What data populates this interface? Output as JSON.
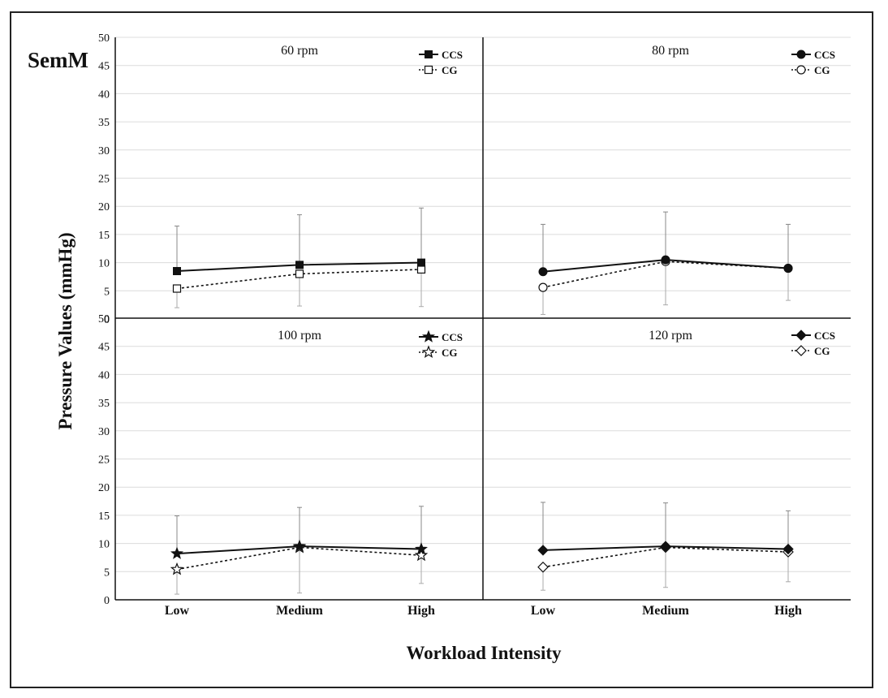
{
  "figure": {
    "muscle_label": "SemM",
    "ylabel": "Pressure Values (mmHg)",
    "xlabel": "Workload Intensity"
  },
  "chart_data": [
    {
      "type": "line",
      "title": "60 rpm",
      "categories": [
        "Low",
        "Medium",
        "High"
      ],
      "ylim": [
        0,
        50
      ],
      "yticks": [
        0,
        5,
        10,
        15,
        20,
        25,
        30,
        35,
        40,
        45,
        50
      ],
      "grid": true,
      "legend_position": "top-right",
      "marker": "square",
      "series": [
        {
          "name": "CCS",
          "values": [
            8.5,
            9.6,
            10.0
          ],
          "error_upper": [
            16.5,
            18.5,
            19.7
          ],
          "line": "solid",
          "fill": "filled"
        },
        {
          "name": "CG",
          "values": [
            5.4,
            8.0,
            8.8
          ],
          "error_lower": [
            2.0,
            2.3,
            2.2
          ],
          "line": "dotted",
          "fill": "open"
        }
      ]
    },
    {
      "type": "line",
      "title": "80 rpm",
      "categories": [
        "Low",
        "Medium",
        "High"
      ],
      "ylim": [
        0,
        50
      ],
      "grid": true,
      "legend_position": "top-right",
      "marker": "circle",
      "series": [
        {
          "name": "CCS",
          "values": [
            8.4,
            10.5,
            9.0
          ],
          "error_upper": [
            16.8,
            19.0,
            16.8
          ],
          "line": "solid",
          "fill": "filled"
        },
        {
          "name": "CG",
          "values": [
            5.6,
            10.2,
            9.0
          ],
          "error_lower": [
            0.8,
            2.5,
            3.3
          ],
          "line": "dotted",
          "fill": "open"
        }
      ]
    },
    {
      "type": "line",
      "title": "100 rpm",
      "categories": [
        "Low",
        "Medium",
        "High"
      ],
      "ylim": [
        0,
        50
      ],
      "yticks": [
        0,
        5,
        10,
        15,
        20,
        25,
        30,
        35,
        40,
        45,
        50
      ],
      "grid": true,
      "legend_position": "top-right",
      "marker": "star",
      "series": [
        {
          "name": "CCS",
          "values": [
            8.2,
            9.5,
            9.0
          ],
          "error_upper": [
            14.9,
            16.4,
            16.6
          ],
          "line": "solid",
          "fill": "filled"
        },
        {
          "name": "CG",
          "values": [
            5.4,
            9.3,
            7.9
          ],
          "error_lower": [
            1.0,
            1.2,
            2.9
          ],
          "line": "dotted",
          "fill": "open"
        }
      ]
    },
    {
      "type": "line",
      "title": "120 rpm",
      "categories": [
        "Low",
        "Medium",
        "High"
      ],
      "ylim": [
        0,
        50
      ],
      "grid": true,
      "legend_position": "top-right",
      "marker": "diamond",
      "series": [
        {
          "name": "CCS",
          "values": [
            8.8,
            9.5,
            9.0
          ],
          "error_upper": [
            17.3,
            17.2,
            15.8
          ],
          "line": "solid",
          "fill": "filled"
        },
        {
          "name": "CG",
          "values": [
            5.8,
            9.3,
            8.5
          ],
          "error_lower": [
            1.7,
            2.2,
            3.2
          ],
          "line": "dotted",
          "fill": "open"
        }
      ]
    }
  ]
}
